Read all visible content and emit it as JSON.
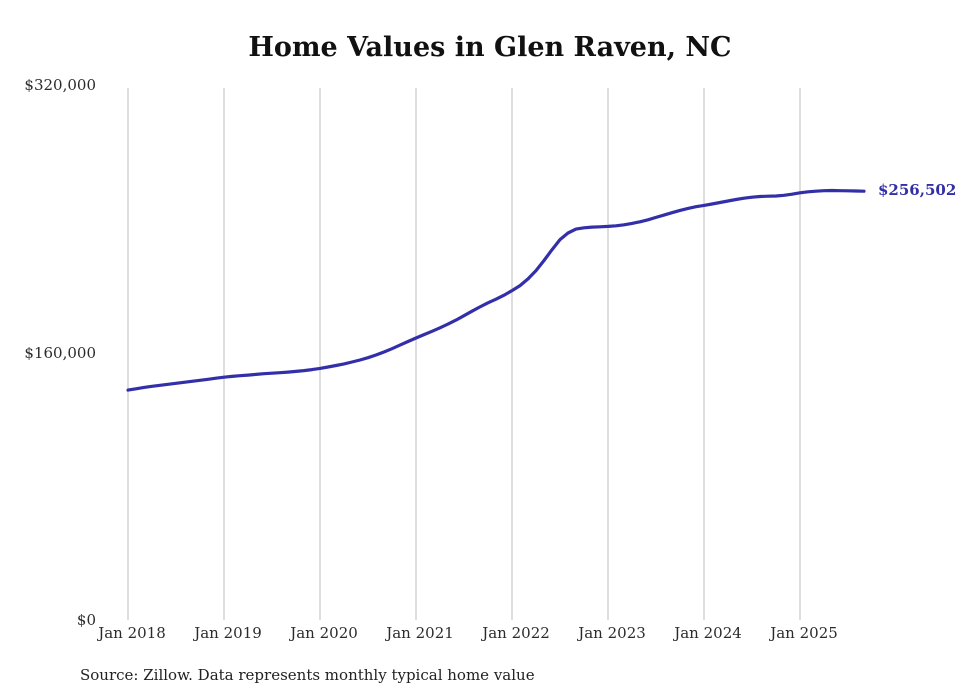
{
  "title": "Home Values in Glen Raven, NC",
  "source_note": "Source: Zillow. Data represents monthly typical home value",
  "end_label": "$256,502",
  "colors": {
    "line": "#332fa8",
    "end_label": "#332fa8",
    "grid": "#cccccc",
    "text": "#2b2b2b",
    "title": "#111111"
  },
  "chart_data": {
    "type": "line",
    "title": "Home Values in Glen Raven, NC",
    "ylabel": "",
    "xlabel": "",
    "ylim": [
      0,
      320000
    ],
    "grid": "vertical-only",
    "legend": "none",
    "y_ticks": [
      {
        "value": 320000,
        "label": "$320,000"
      },
      {
        "value": 160000,
        "label": "$160,000"
      },
      {
        "value": 0,
        "label": "$0"
      }
    ],
    "x_ticks": [
      "Jan 2018",
      "Jan 2019",
      "Jan 2020",
      "Jan 2021",
      "Jan 2022",
      "Jan 2023",
      "Jan 2024",
      "Jan 2025"
    ],
    "series": [
      {
        "name": "Monthly typical home value",
        "start_month": "2018-01",
        "frequency": "monthly",
        "final_value": 256502,
        "values": [
          137500,
          138300,
          139100,
          139800,
          140400,
          141000,
          141600,
          142200,
          142800,
          143400,
          144000,
          144600,
          145200,
          145700,
          146100,
          146500,
          146900,
          147300,
          147600,
          147900,
          148300,
          148700,
          149200,
          149800,
          150500,
          151300,
          152200,
          153200,
          154300,
          155500,
          156900,
          158500,
          160300,
          162300,
          164400,
          166600,
          168700,
          170700,
          172700,
          174800,
          177000,
          179400,
          182000,
          184700,
          187300,
          189700,
          191900,
          194300,
          197000,
          200000,
          204000,
          209000,
          215000,
          221500,
          227500,
          231500,
          233800,
          234600,
          235000,
          235200,
          235400,
          235800,
          236400,
          237200,
          238200,
          239400,
          240800,
          242200,
          243600,
          245000,
          246200,
          247200,
          248000,
          248800,
          249700,
          250600,
          251500,
          252300,
          252900,
          253300,
          253500,
          253600,
          254000,
          254700,
          255500,
          256100,
          256500,
          256800,
          256900,
          256800,
          256700,
          256600,
          256502
        ]
      }
    ]
  }
}
